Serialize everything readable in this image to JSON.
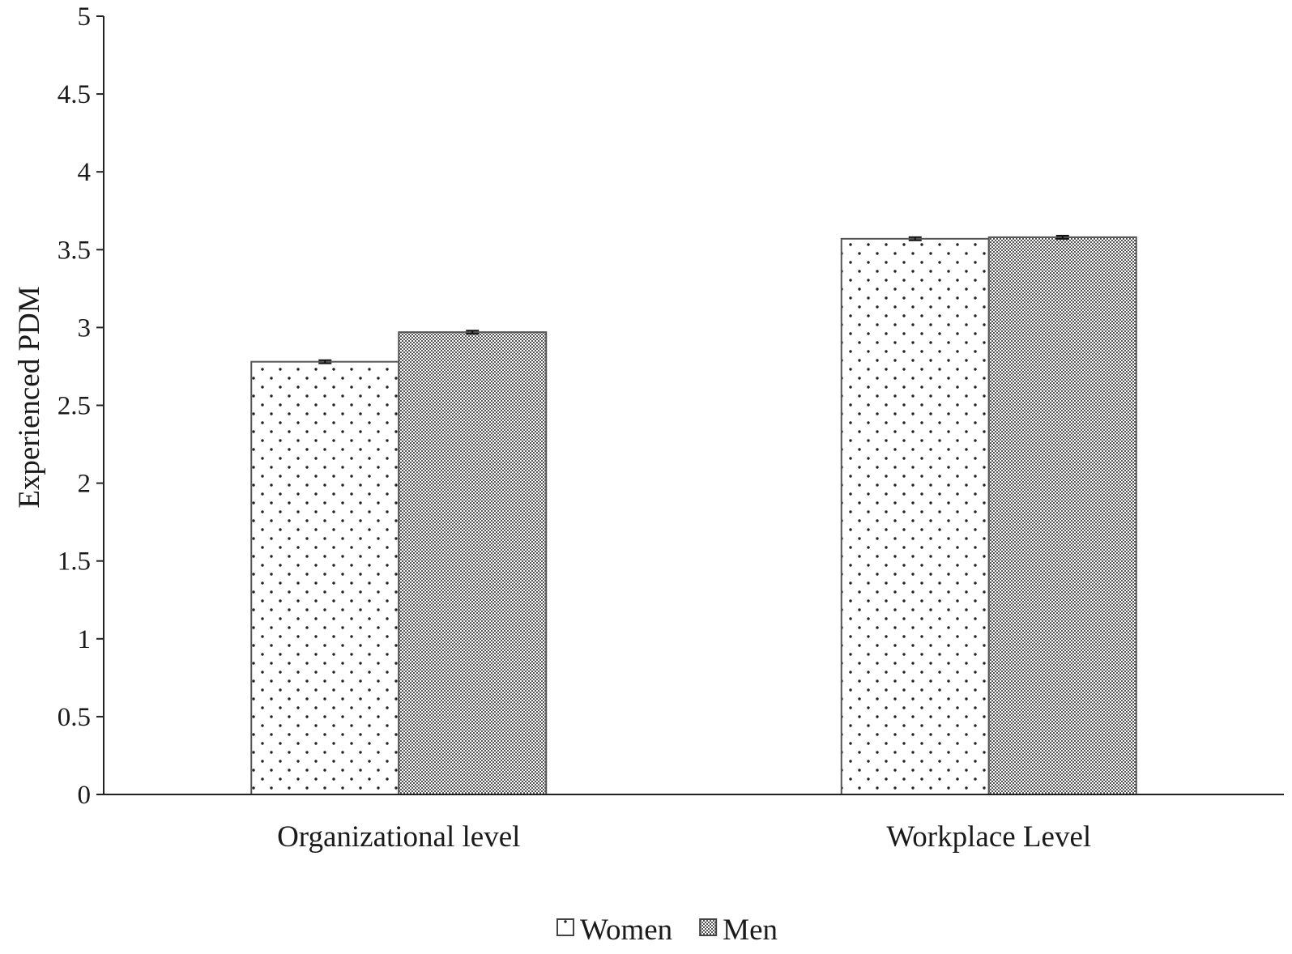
{
  "chart_data": {
    "type": "bar",
    "title": "",
    "xlabel": "",
    "ylabel": "Experienced PDM",
    "categories": [
      "Organizational level",
      "Workplace Level"
    ],
    "series": [
      {
        "name": "Women",
        "values": [
          2.78,
          3.57
        ],
        "error": [
          0.01,
          0.01
        ],
        "pattern": "dots",
        "color": "#ffffff"
      },
      {
        "name": "Men",
        "values": [
          2.97,
          3.58
        ],
        "error": [
          0.01,
          0.01
        ],
        "pattern": "checker",
        "color": "#9a9a9a"
      }
    ],
    "ylim": [
      0,
      5
    ],
    "yticks": [
      0,
      0.5,
      1,
      1.5,
      2,
      2.5,
      3,
      3.5,
      4,
      4.5,
      5
    ],
    "ytick_labels": [
      "0",
      "0.5",
      "1",
      "1.5",
      "2",
      "2.5",
      "3",
      "3.5",
      "4",
      "4.5",
      "5"
    ],
    "grid": false,
    "legend_position": "bottom-center",
    "error_bars": true
  }
}
